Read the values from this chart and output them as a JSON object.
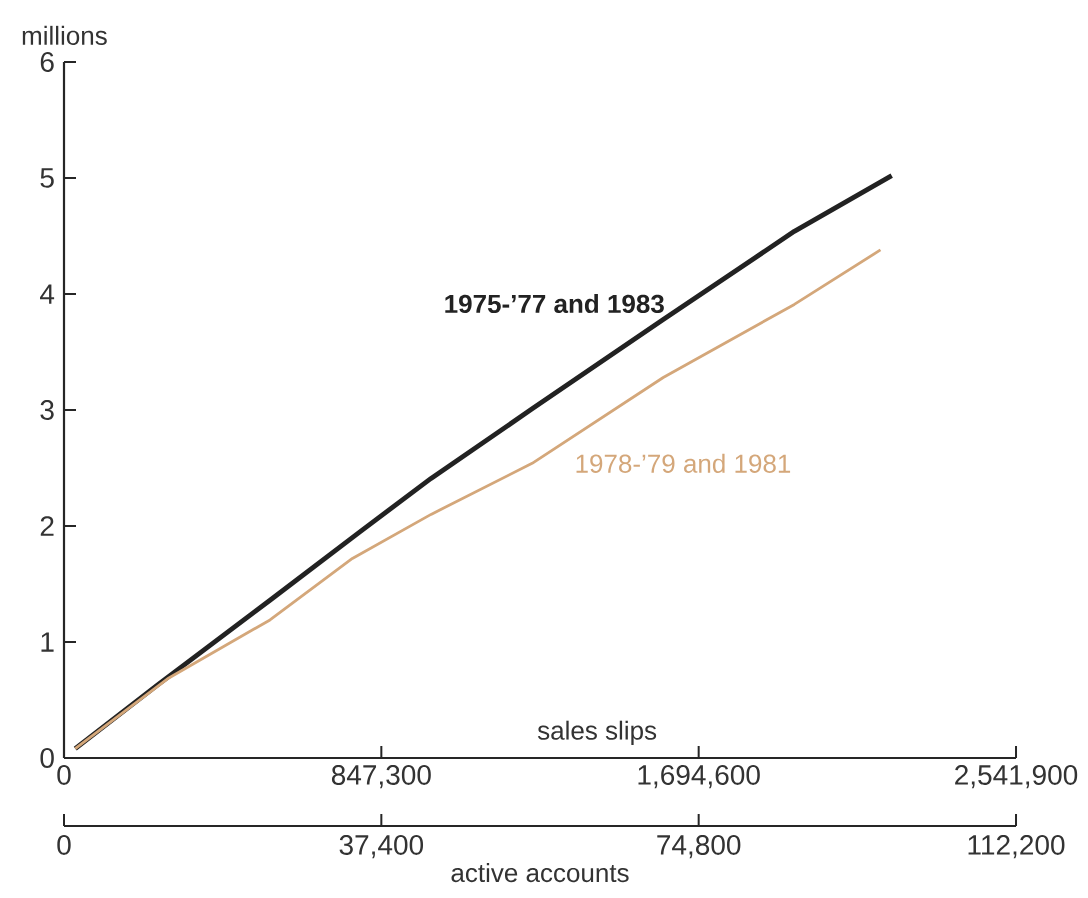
{
  "chart_data": {
    "type": "line",
    "ylabel": "millions",
    "xlabel": "sales slips",
    "x2label": "active accounts",
    "xlim": [
      0,
      2541900
    ],
    "xticks": [
      0,
      {
        "value": 847300,
        "label": "847,300"
      },
      {
        "value": 1694600,
        "label": "1,694,600"
      },
      {
        "value": 2541900,
        "label": "2,541,900"
      }
    ],
    "x2lim": [
      0,
      112200
    ],
    "x2ticks": [
      0,
      {
        "value": 37400,
        "label": "37,400"
      },
      {
        "value": 74800,
        "label": "74,800"
      },
      {
        "value": 112200,
        "label": "112,200"
      }
    ],
    "ylim": [
      0,
      6
    ],
    "yticks": [
      0,
      1,
      2,
      3,
      4,
      5,
      6
    ],
    "series": [
      {
        "name": "1975-’77 and 1983",
        "color": "#222222",
        "x": [
          30000,
          250000,
          550000,
          790000,
          980000,
          1250000,
          1600000,
          1950000,
          2210000
        ],
        "values": [
          0.08,
          0.63,
          1.36,
          1.95,
          2.41,
          3.01,
          3.78,
          4.54,
          5.02
        ]
      },
      {
        "name": "1978-’79 and 1981",
        "color": "#d4a77a",
        "x": [
          30000,
          280000,
          550000,
          770000,
          980000,
          1250000,
          1600000,
          1950000,
          2180000
        ],
        "values": [
          0.08,
          0.69,
          1.19,
          1.72,
          2.1,
          2.54,
          3.28,
          3.91,
          4.38
        ]
      }
    ]
  }
}
